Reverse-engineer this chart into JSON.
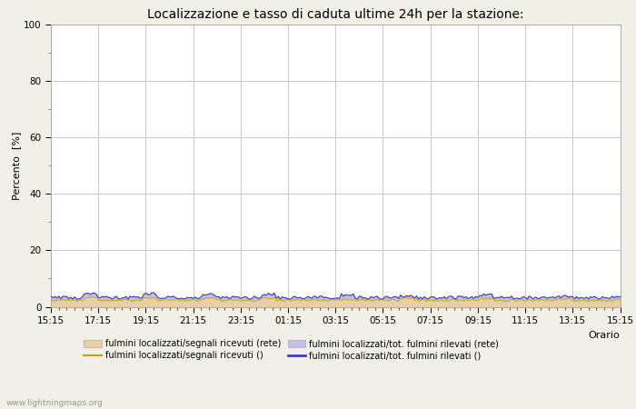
{
  "title": "Localizzazione e tasso di caduta ultime 24h per la stazione:",
  "xlabel": "Orario",
  "ylabel": "Percento  [%]",
  "ylim": [
    0,
    100
  ],
  "yticks": [
    0,
    20,
    40,
    60,
    80,
    100
  ],
  "yticks_minor": [
    10,
    30,
    50,
    70,
    90
  ],
  "x_labels": [
    "15:15",
    "17:15",
    "19:15",
    "21:15",
    "23:15",
    "01:15",
    "03:15",
    "05:15",
    "07:15",
    "09:15",
    "11:15",
    "13:15",
    "15:15"
  ],
  "n_points": 289,
  "background_color": "#f0f0e8",
  "plot_bg_color": "#ffffff",
  "grid_color": "#c8c8c8",
  "fill_color_1": "#e8d0a0",
  "fill_color_2": "#c0c0e8",
  "line_color_1": "#c8a000",
  "line_color_2": "#4040b0",
  "legend_labels": [
    "fulmini localizzati/segnali ricevuti (rete)",
    "fulmini localizzati/segnali ricevuti ()",
    "fulmini localizzati/tot. fulmini rilevati (rete)",
    "fulmini localizzati/tot. fulmini rilevati ()"
  ],
  "watermark": "www.lightningmaps.org",
  "title_fontsize": 10,
  "axis_label_fontsize": 8,
  "tick_fontsize": 7.5,
  "legend_fontsize": 7
}
